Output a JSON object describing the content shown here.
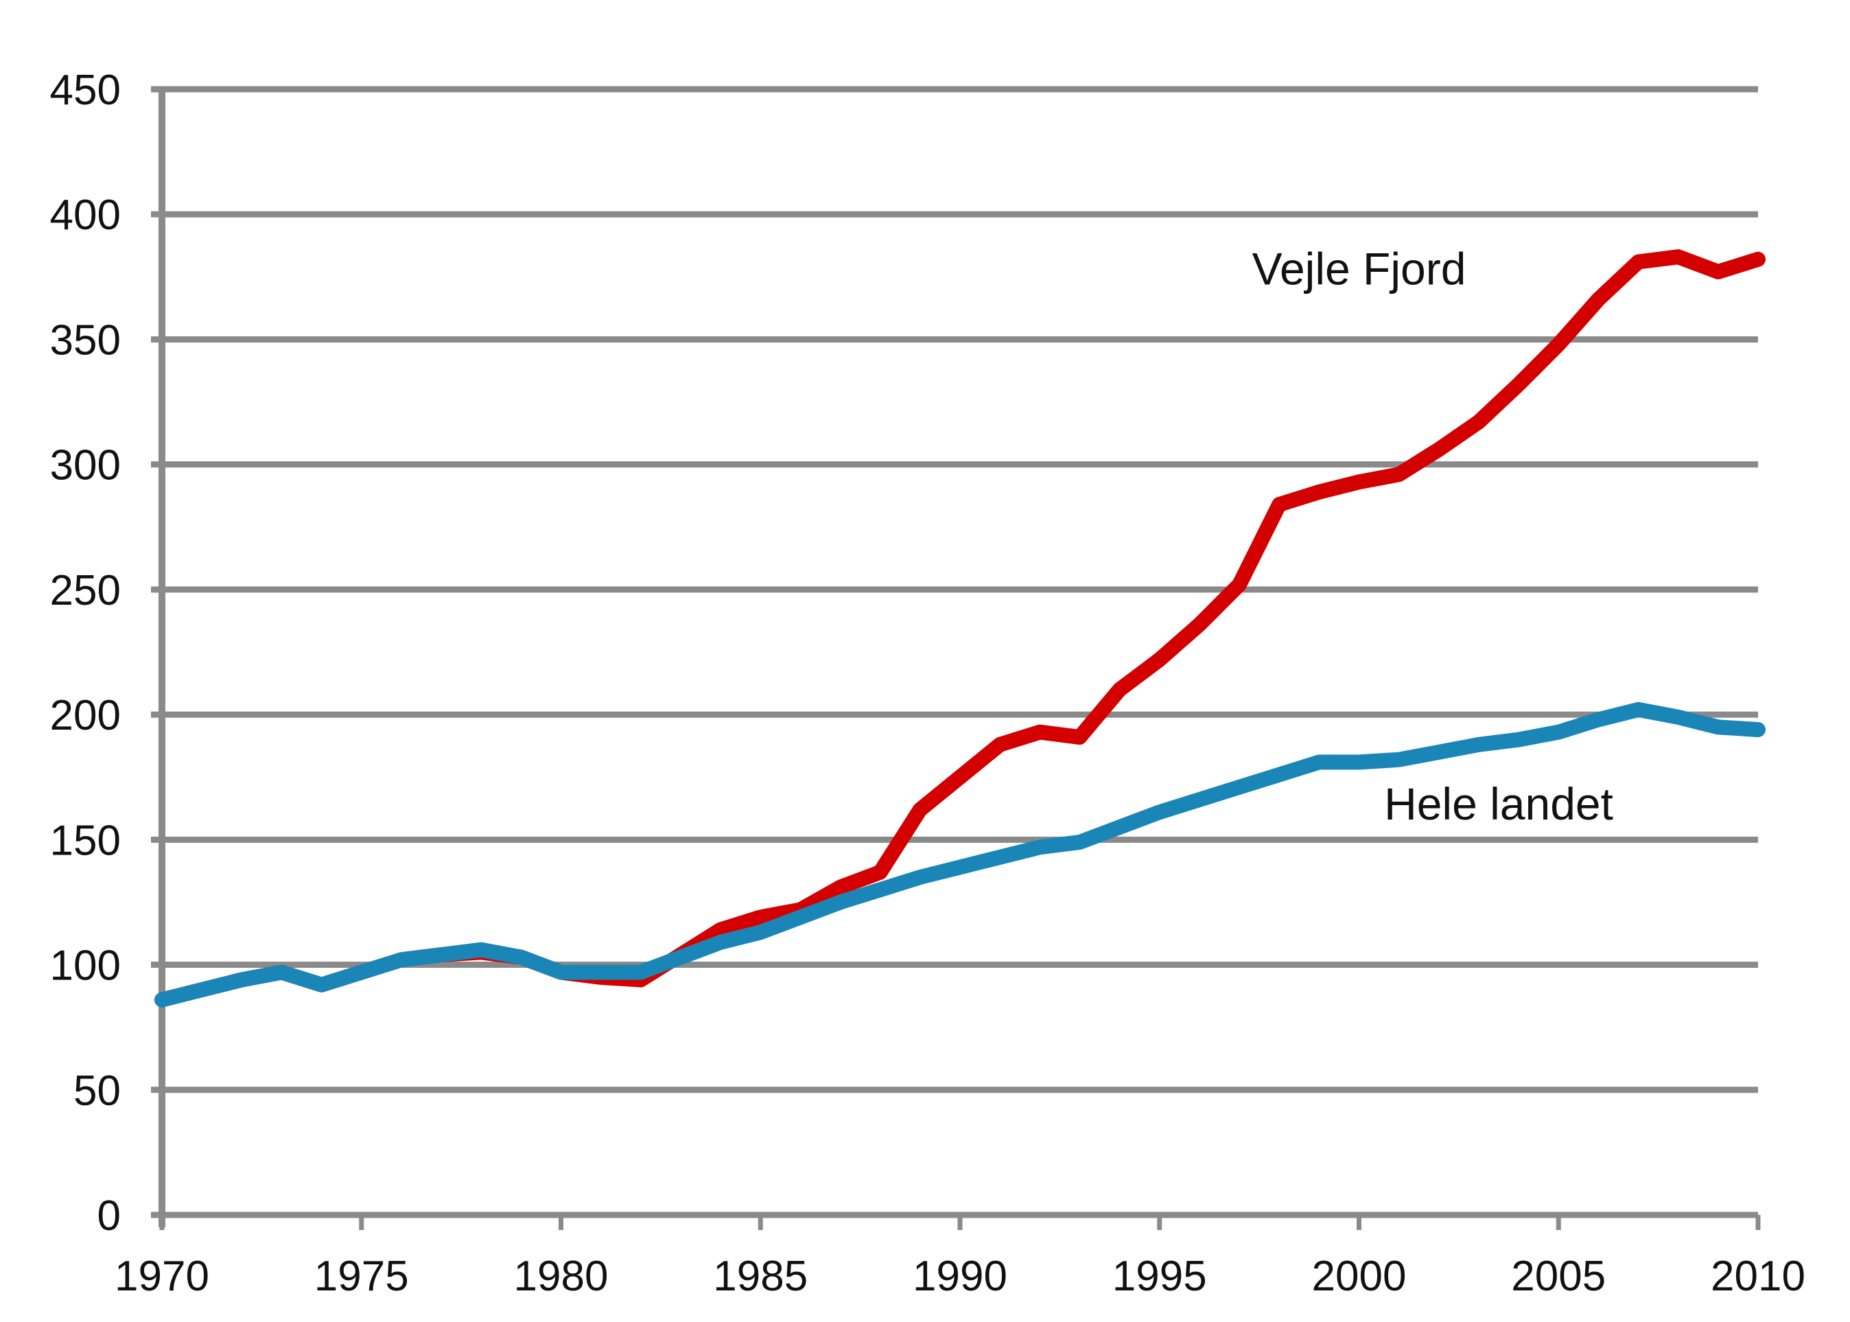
{
  "chart_data": {
    "type": "line",
    "title": "",
    "xlabel": "",
    "ylabel": "",
    "xlim": [
      1970,
      2010
    ],
    "ylim": [
      0,
      450
    ],
    "grid": true,
    "legend_position": "inline annotations",
    "x_ticks": [
      "1970",
      "1975",
      "1980",
      "1985",
      "1990",
      "1995",
      "2000",
      "2005",
      "2010"
    ],
    "y_ticks": [
      "0",
      "50",
      "100",
      "150",
      "200",
      "250",
      "300",
      "350",
      "400",
      "450"
    ],
    "x": [
      1970,
      1971,
      1972,
      1973,
      1974,
      1975,
      1976,
      1977,
      1978,
      1979,
      1980,
      1981,
      1982,
      1983,
      1984,
      1985,
      1986,
      1987,
      1988,
      1989,
      1990,
      1991,
      1992,
      1993,
      1994,
      1995,
      1996,
      1997,
      1998,
      1999,
      2000,
      2001,
      2002,
      2003,
      2004,
      2005,
      2006,
      2007,
      2008,
      2009,
      2010
    ],
    "series": [
      {
        "name": "Vejle Fjord",
        "color": "#d40000",
        "values": [
          86,
          90,
          94,
          97,
          92,
          97,
          102,
          104,
          105,
          103,
          97,
          95,
          94,
          104,
          114,
          119,
          122,
          131,
          137,
          162,
          175,
          188,
          193,
          191,
          210,
          222,
          236,
          252,
          284,
          289,
          293,
          296,
          306,
          317,
          332,
          348,
          366,
          381,
          383,
          377,
          382
        ]
      },
      {
        "name": "Hele landet",
        "color": "#1a86b8",
        "values": [
          86,
          90,
          94,
          97,
          92,
          97,
          102,
          104,
          106,
          103,
          97,
          97,
          97,
          103,
          109,
          113,
          119,
          125,
          130,
          135,
          139,
          143,
          147,
          149,
          155,
          161,
          166,
          171,
          176,
          181,
          181,
          182,
          185,
          188,
          190,
          193,
          198,
          202,
          199,
          195,
          194
        ]
      }
    ],
    "annotations": [
      {
        "text": "Vejle Fjord",
        "x": 2000.0,
        "y": 372
      },
      {
        "text": "Hele landet",
        "x": 2003.5,
        "y": 158
      }
    ],
    "colors": {
      "grid": "#8a8a8a",
      "axis": "#8a8a8a",
      "text": "#111111",
      "background": "#ffffff"
    }
  }
}
